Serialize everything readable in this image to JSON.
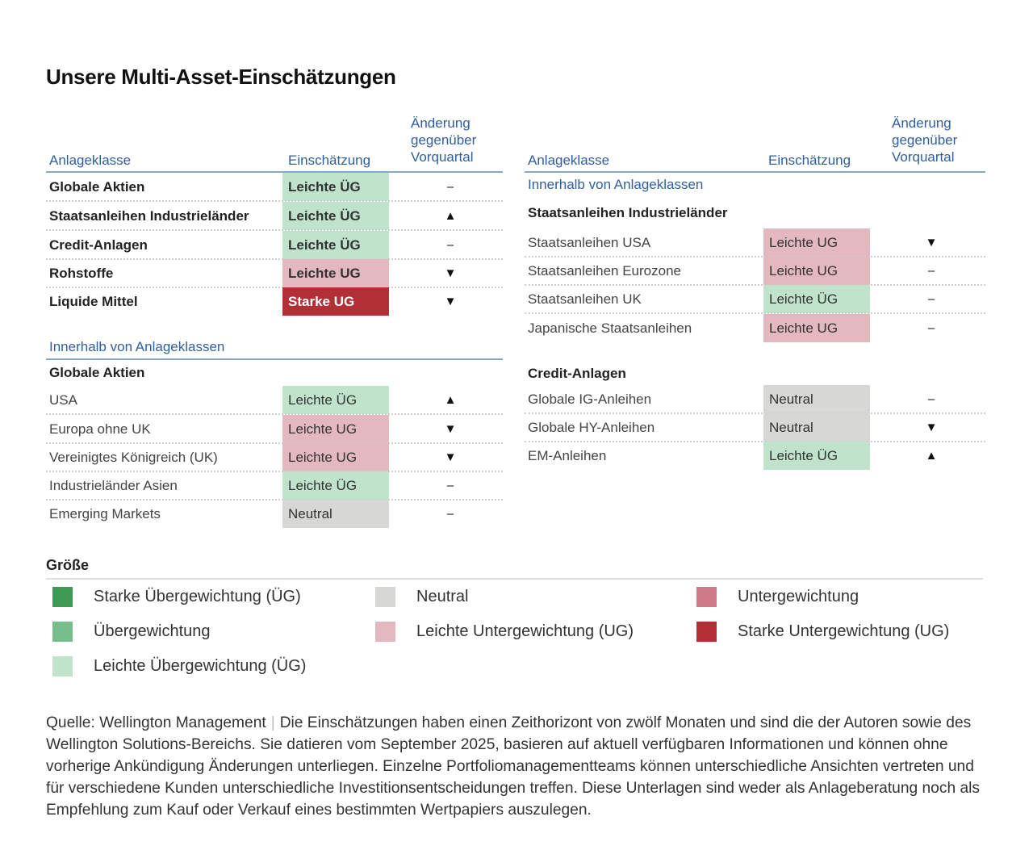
{
  "title": "Unsere Multi-Asset-Einschätzungen",
  "headers": {
    "asset_class": "Anlageklasse",
    "view": "Einschätzung",
    "change_line1": "Änderung",
    "change_line2": "gegenüber",
    "change_line3": "Vorquartal"
  },
  "colors": {
    "header_blue": "#2f5f9e",
    "strong_ow": "#3f9a55",
    "ow": "#76bf8c",
    "light_ow": "#bfe3cb",
    "neutral": "#d7d7d5",
    "light_uw": "#e4b8c0",
    "uw": "#cf7a86",
    "strong_uw": "#b12f35"
  },
  "left_top_rows": [
    {
      "label": "Globale Aktien",
      "view": "Leichte ÜG",
      "change": "–",
      "level": "light_ow"
    },
    {
      "label": "Staatsanleihen Industrieländer",
      "view": "Leichte ÜG",
      "change": "▲",
      "level": "light_ow"
    },
    {
      "label": "Credit-Anlagen",
      "view": "Leichte ÜG",
      "change": "–",
      "level": "light_ow"
    },
    {
      "label": "Rohstoffe",
      "view": "Leichte UG",
      "change": "▼",
      "level": "light_uw"
    },
    {
      "label": "Liquide Mittel",
      "view": "Starke UG",
      "change": "▼",
      "level": "strong_uw"
    }
  ],
  "within_label": "Innerhalb von Anlageklassen",
  "left_group": {
    "title": "Globale Aktien",
    "rows": [
      {
        "label": "USA",
        "view": "Leichte ÜG",
        "change": "▲",
        "level": "light_ow"
      },
      {
        "label": "Europa ohne UK",
        "view": "Leichte UG",
        "change": "▼",
        "level": "light_uw"
      },
      {
        "label": "Vereinigtes Königreich (UK)",
        "view": "Leichte UG",
        "change": "▼",
        "level": "light_uw"
      },
      {
        "label": "Industrieländer Asien",
        "view": "Leichte ÜG",
        "change": "–",
        "level": "light_ow"
      },
      {
        "label": "Emerging Markets",
        "view": "Neutral",
        "change": "–",
        "level": "neutral"
      }
    ]
  },
  "right_groups": [
    {
      "title": "Staatsanleihen Industrieländer",
      "rows": [
        {
          "label": "Staatsanleihen USA",
          "view": "Leichte UG",
          "change": "▼",
          "level": "light_uw"
        },
        {
          "label": "Staatsanleihen Eurozone",
          "view": "Leichte UG",
          "change": "–",
          "level": "light_uw"
        },
        {
          "label": "Staatsanleihen UK",
          "view": "Leichte ÜG",
          "change": "–",
          "level": "light_ow"
        },
        {
          "label": "Japanische Staatsanleihen",
          "view": "Leichte UG",
          "change": "–",
          "level": "light_uw"
        }
      ]
    },
    {
      "title": "Credit-Anlagen",
      "rows": [
        {
          "label": "Globale IG-Anleihen",
          "view": "Neutral",
          "change": "–",
          "level": "neutral"
        },
        {
          "label": "Globale HY-Anleihen",
          "view": "Neutral",
          "change": "▼",
          "level": "neutral"
        },
        {
          "label": "EM-Anleihen",
          "view": "Leichte ÜG",
          "change": "▲",
          "level": "light_ow"
        }
      ]
    }
  ],
  "legend": {
    "title": "Größe",
    "items": [
      {
        "label": "Starke Übergewichtung (ÜG)",
        "level": "strong_ow"
      },
      {
        "label": "Übergewichtung",
        "level": "ow"
      },
      {
        "label": "Leichte Übergewichtung (ÜG)",
        "level": "light_ow"
      },
      {
        "label": "Neutral",
        "level": "neutral"
      },
      {
        "label": "Leichte Untergewichtung (UG)",
        "level": "light_uw"
      },
      {
        "label": "Untergewichtung",
        "level": "uw"
      },
      {
        "label": "Starke Untergewichtung (UG)",
        "level": "strong_uw"
      }
    ]
  },
  "footer": {
    "source": "Quelle: Wellington Management",
    "separator": "|",
    "text": "Die Einschätzungen haben einen Zeithorizont von zwölf Monaten und sind die der Autoren sowie des Wellington Solutions-Bereichs. Sie datieren vom September 2025, basieren auf aktuell verfügbaren Informationen und können ohne vorherige Ankündigung Änderungen unterliegen. Einzelne Portfoliomanagementteams können unterschiedliche Ansichten vertreten und für verschiedene Kunden unterschiedliche Investitionsentscheidungen treffen. Diese Unterlagen sind weder als Anlageberatung noch als Empfehlung zum Kauf oder Verkauf eines bestimmten Wertpapiers auszulegen."
  },
  "chart_data": {
    "type": "table",
    "title": "Unsere Multi-Asset-Einschätzungen",
    "columns": [
      "Anlageklasse",
      "Einschätzung",
      "Änderung gegenüber Vorquartal"
    ],
    "scale": [
      "Starke ÜG",
      "ÜG",
      "Leichte ÜG",
      "Neutral",
      "Leichte UG",
      "UG",
      "Starke UG"
    ]
  }
}
